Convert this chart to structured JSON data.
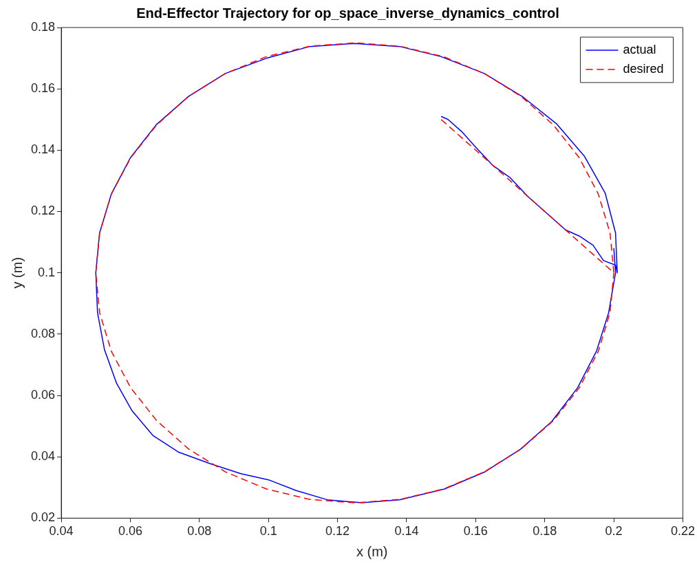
{
  "chart_data": {
    "type": "line",
    "title": "End-Effector Trajectory for op_space_inverse_dynamics_control",
    "xlabel": "x (m)",
    "ylabel": "y (m)",
    "xlim": [
      0.04,
      0.22
    ],
    "xticks": [
      0.04,
      0.06,
      0.08,
      0.1,
      0.12,
      0.14,
      0.16,
      0.18,
      0.2,
      0.22
    ],
    "ylim": [
      0.02,
      0.18
    ],
    "yticks": [
      0.02,
      0.04,
      0.06,
      0.08,
      0.1,
      0.12,
      0.14,
      0.16,
      0.18
    ],
    "grid": false,
    "legend": "top right",
    "marker": "none",
    "series": [
      {
        "name": "actual",
        "color": "#0000ff",
        "line_style": "solid",
        "x": [
          0.15,
          0.152,
          0.156,
          0.16,
          0.165,
          0.17,
          0.175,
          0.18,
          0.186,
          0.19,
          0.194,
          0.197,
          0.2005,
          0.201,
          0.2005,
          0.1975,
          0.1915,
          0.1835,
          0.1735,
          0.1625,
          0.15,
          0.138,
          0.125,
          0.112,
          0.0995,
          0.0875,
          0.0768,
          0.0675,
          0.06,
          0.0545,
          0.0511,
          0.05,
          0.0505,
          0.0525,
          0.056,
          0.0605,
          0.0665,
          0.074,
          0.083,
          0.092,
          0.1,
          0.108,
          0.117,
          0.127,
          0.138,
          0.151,
          0.1625,
          0.173,
          0.182,
          0.1895,
          0.195,
          0.1985,
          0.2005,
          0.2
        ],
        "values": [
          0.151,
          0.15,
          0.146,
          0.141,
          0.135,
          0.131,
          0.125,
          0.12,
          0.114,
          0.112,
          0.109,
          0.104,
          0.1025,
          0.1,
          0.113,
          0.126,
          0.138,
          0.1485,
          0.1575,
          0.165,
          0.1705,
          0.1738,
          0.1748,
          0.1738,
          0.17,
          0.165,
          0.1575,
          0.1483,
          0.1375,
          0.1257,
          0.113,
          0.1,
          0.087,
          0.075,
          0.064,
          0.055,
          0.047,
          0.0415,
          0.0378,
          0.0345,
          0.0325,
          0.029,
          0.026,
          0.025,
          0.026,
          0.0295,
          0.035,
          0.0425,
          0.0515,
          0.0625,
          0.0745,
          0.087,
          0.1,
          0.108
        ]
      },
      {
        "name": "desired",
        "color": "#ff0000",
        "line_style": "dashed",
        "x": [
          0.15,
          0.2,
          0.1989,
          0.1955,
          0.19,
          0.1825,
          0.1732,
          0.1625,
          0.1507,
          0.138,
          0.125,
          0.112,
          0.0994,
          0.0875,
          0.0768,
          0.0676,
          0.0601,
          0.0545,
          0.0511,
          0.05,
          0.0511,
          0.0545,
          0.0601,
          0.0676,
          0.0768,
          0.0875,
          0.0994,
          0.112,
          0.125,
          0.138,
          0.1507,
          0.1625,
          0.1732,
          0.1825,
          0.19,
          0.1955,
          0.1989,
          0.2
        ],
        "values": [
          0.15,
          0.1,
          0.113,
          0.1257,
          0.1375,
          0.1482,
          0.1575,
          0.165,
          0.1705,
          0.1739,
          0.175,
          0.1739,
          0.1705,
          0.165,
          0.1575,
          0.1482,
          0.1375,
          0.1257,
          0.113,
          0.1,
          0.087,
          0.0744,
          0.0625,
          0.0518,
          0.0426,
          0.0351,
          0.0295,
          0.0261,
          0.025,
          0.0261,
          0.0295,
          0.0351,
          0.0426,
          0.0518,
          0.0625,
          0.0744,
          0.087,
          0.1
        ]
      }
    ]
  }
}
